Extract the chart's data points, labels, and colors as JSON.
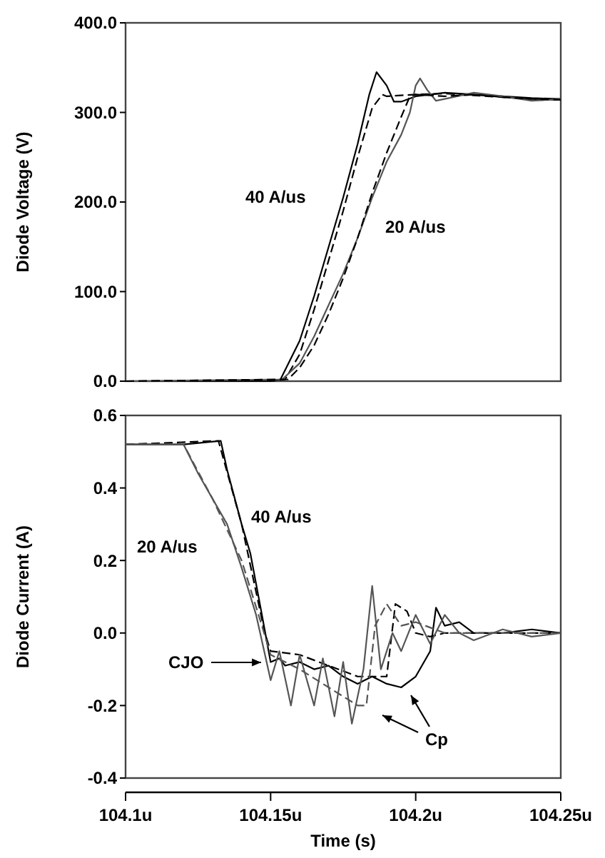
{
  "chart_data": [
    {
      "type": "line",
      "ylabel": "Diode Voltage (V)",
      "xlim": [
        104.1,
        104.25
      ],
      "tick_labels": "y",
      "ylim": [
        0,
        400
      ],
      "yticks": [
        {
          "value": 0,
          "label": "0.0"
        },
        {
          "value": 100,
          "label": "100.0"
        },
        {
          "value": 200,
          "label": "200.0"
        },
        {
          "value": 300,
          "label": "300.0"
        },
        {
          "value": 400,
          "label": "400.0"
        }
      ],
      "annotations": [
        "40 A/us",
        "20 A/us"
      ],
      "series": [
        {
          "color": "#000000",
          "line_style": "solid",
          "x": [
            104.1,
            104.15,
            104.1534,
            104.16,
            104.165,
            104.17,
            104.175,
            104.18,
            104.184,
            104.1865,
            104.19,
            104.1925,
            104.195,
            104.2,
            104.21,
            104.22,
            104.23,
            104.24,
            104.25
          ],
          "values": [
            0,
            0,
            2,
            45,
            95,
            150,
            205,
            265,
            320,
            345,
            330,
            312,
            312,
            318,
            322,
            320,
            318,
            316,
            315
          ]
        },
        {
          "color": "#000000",
          "line_style": "dashed",
          "x": [
            104.1,
            104.15,
            104.155,
            104.16,
            104.165,
            104.17,
            104.175,
            104.18,
            104.185,
            104.1885,
            104.19,
            104.2,
            104.21,
            104.22,
            104.23,
            104.24,
            104.25
          ],
          "values": [
            0,
            0,
            2,
            30,
            80,
            135,
            190,
            250,
            305,
            320,
            318,
            320,
            321,
            319,
            317,
            315,
            314
          ]
        },
        {
          "color": "#555555",
          "line_style": "solid",
          "x": [
            104.1,
            104.154,
            104.16,
            104.165,
            104.17,
            104.175,
            104.18,
            104.185,
            104.19,
            104.195,
            104.198,
            104.2,
            104.2015,
            104.204,
            104.207,
            104.21,
            104.22,
            104.23,
            104.24,
            104.25
          ],
          "values": [
            0,
            2,
            20,
            50,
            85,
            120,
            160,
            205,
            245,
            275,
            300,
            330,
            338,
            325,
            313,
            315,
            322,
            318,
            313,
            315
          ]
        },
        {
          "color": "#000000",
          "line_style": "dashed",
          "x": [
            104.1,
            104.156,
            104.16,
            104.165,
            104.17,
            104.175,
            104.18,
            104.185,
            104.19,
            104.195,
            104.198,
            104.2,
            104.21,
            104.22,
            104.23,
            104.24,
            104.25
          ],
          "values": [
            0,
            2,
            15,
            40,
            75,
            115,
            160,
            210,
            255,
            295,
            318,
            320,
            318,
            320,
            317,
            315,
            314
          ]
        }
      ]
    },
    {
      "type": "line",
      "ylabel": "Diode Current (A)",
      "xlabel": "Time (s)",
      "xlim": [
        104.1,
        104.25
      ],
      "xticks": [
        {
          "value": 104.1,
          "label": "104.1u"
        },
        {
          "value": 104.15,
          "label": "104.15u"
        },
        {
          "value": 104.2,
          "label": "104.2u"
        },
        {
          "value": 104.25,
          "label": "104.25u"
        }
      ],
      "ylim": [
        -0.4,
        0.6
      ],
      "yticks": [
        {
          "value": -0.4,
          "label": "-0.4"
        },
        {
          "value": -0.2,
          "label": "-0.2"
        },
        {
          "value": 0,
          "label": "0.0"
        },
        {
          "value": 0.2,
          "label": "0.2"
        },
        {
          "value": 0.4,
          "label": "0.4"
        },
        {
          "value": 0.6,
          "label": "0.6"
        }
      ],
      "annotations": [
        "40 A/us",
        "20 A/us",
        "CJO",
        "Cp"
      ],
      "series": [
        {
          "color": "#000000",
          "line_style": "solid",
          "x": [
            104.1,
            104.11,
            104.12,
            104.1328,
            104.135,
            104.14,
            104.143,
            104.147,
            104.15,
            104.153,
            104.155,
            104.16,
            104.165,
            104.17,
            104.175,
            104.18,
            104.185,
            104.19,
            104.195,
            104.2,
            104.205,
            104.207,
            104.21,
            104.215,
            104.22,
            104.23,
            104.24,
            104.25
          ],
          "values": [
            0.52,
            0.52,
            0.52,
            0.53,
            0.45,
            0.3,
            0.22,
            0.05,
            -0.08,
            -0.07,
            -0.09,
            -0.08,
            -0.1,
            -0.09,
            -0.12,
            -0.14,
            -0.12,
            -0.14,
            -0.15,
            -0.12,
            -0.05,
            0.07,
            0.02,
            0.03,
            0,
            0,
            0.01,
            0
          ]
        },
        {
          "color": "#000000",
          "line_style": "dashed",
          "x": [
            104.1,
            104.132,
            104.14,
            104.148,
            104.15,
            104.16,
            104.17,
            104.18,
            104.19,
            104.193,
            104.197,
            104.2,
            104.205,
            104.21,
            104.25
          ],
          "values": [
            0.52,
            0.53,
            0.3,
            0,
            -0.05,
            -0.06,
            -0.09,
            -0.12,
            -0.12,
            0.08,
            0.06,
            0,
            -0.01,
            0,
            0
          ]
        },
        {
          "color": "#555555",
          "line_style": "solid",
          "x": [
            104.1,
            104.12,
            104.125,
            104.13,
            104.135,
            104.14,
            104.145,
            104.15,
            104.153,
            104.157,
            104.16,
            104.165,
            104.168,
            104.172,
            104.175,
            104.178,
            104.182,
            104.185,
            104.188,
            104.192,
            104.195,
            104.2,
            104.205,
            104.21,
            104.215,
            104.22,
            104.23,
            104.24,
            104.25
          ],
          "values": [
            0.52,
            0.52,
            0.44,
            0.37,
            0.3,
            0.18,
            0.05,
            -0.13,
            -0.05,
            -0.2,
            -0.06,
            -0.2,
            -0.07,
            -0.23,
            -0.08,
            -0.25,
            -0.1,
            0.13,
            -0.1,
            0,
            -0.05,
            0.05,
            -0.03,
            0.05,
            0,
            -0.02,
            0.01,
            -0.01,
            0
          ]
        },
        {
          "color": "#555555",
          "line_style": "dashed",
          "x": [
            104.1,
            104.12,
            104.13,
            104.14,
            104.147,
            104.15,
            104.16,
            104.17,
            104.18,
            104.183,
            104.186,
            104.19,
            104.195,
            104.2,
            104.21,
            104.22,
            104.25
          ],
          "values": [
            0.52,
            0.52,
            0.37,
            0.2,
            0.02,
            -0.06,
            -0.1,
            -0.15,
            -0.2,
            -0.2,
            0.02,
            0.08,
            0.02,
            0.03,
            0.0,
            0.0,
            0.0
          ]
        }
      ]
    }
  ]
}
